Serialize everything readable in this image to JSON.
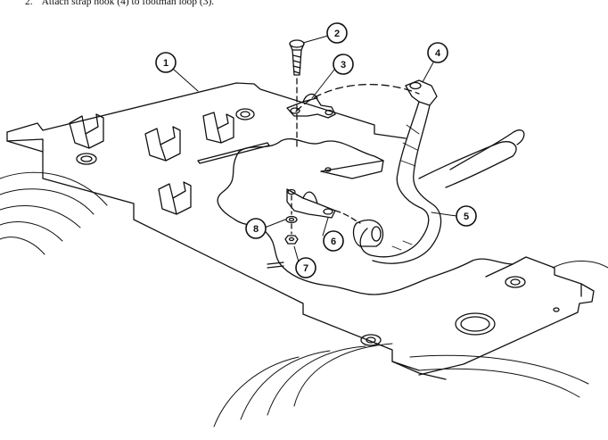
{
  "instruction": {
    "number": "2.",
    "text": "Attach strap hook (4) to footman loop (3)."
  },
  "callouts": [
    {
      "id": "callout-1",
      "label": "1"
    },
    {
      "id": "callout-2",
      "label": "2"
    },
    {
      "id": "callout-3",
      "label": "3"
    },
    {
      "id": "callout-4",
      "label": "4"
    },
    {
      "id": "callout-5",
      "label": "5"
    },
    {
      "id": "callout-6",
      "label": "6"
    },
    {
      "id": "callout-7",
      "label": "7"
    },
    {
      "id": "callout-8",
      "label": "8"
    }
  ],
  "colors": {
    "line": "#111111",
    "background": "#ffffff"
  }
}
